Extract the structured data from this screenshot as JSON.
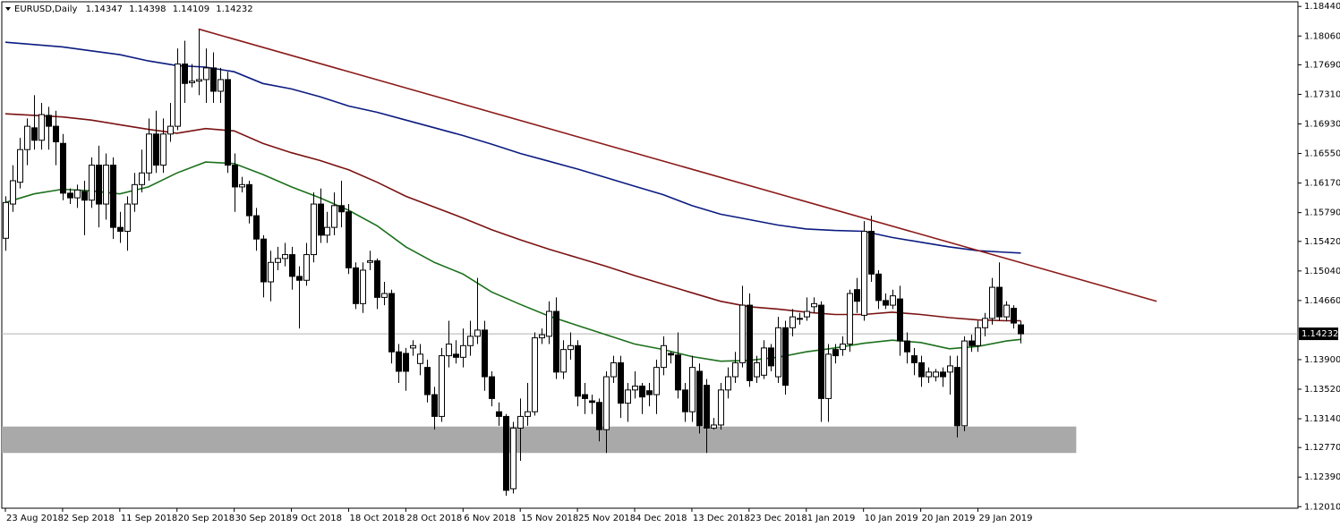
{
  "chart_data": {
    "type": "candlestick",
    "title": "EURUSD,Daily",
    "open": [
      1.1546,
      1.159,
      1.1618,
      1.166,
      1.1688,
      1.1672,
      1.1704,
      1.169,
      1.1668,
      1.1604,
      1.1598,
      1.1606,
      1.1595,
      1.164,
      1.159,
      1.164,
      1.156,
      1.1555,
      1.159,
      1.1615,
      1.163,
      1.168,
      1.164,
      1.168,
      1.169,
      1.177,
      1.1746,
      1.1748,
      1.175,
      1.1765,
      1.1735,
      1.175,
      1.164,
      1.1612,
      1.1615,
      1.1575,
      1.1545,
      1.149,
      1.1515,
      1.152,
      1.1525,
      1.1497,
      1.1492,
      1.1525,
      1.159,
      1.155,
      1.156,
      1.1588,
      1.158,
      1.1508,
      1.1462,
      1.1515,
      1.1517,
      1.147,
      1.1475,
      1.14,
      1.1398,
      1.1405,
      1.1385,
      1.138,
      1.1345,
      1.1317,
      1.1395,
      1.1397,
      1.1393,
      1.1408,
      1.142,
      1.1428,
      1.1368,
      1.1323,
      1.1317,
      1.1224,
      1.1302,
      1.1317,
      1.1323,
      1.1418,
      1.142,
      1.1452,
      1.1374,
      1.1403,
      1.1408,
      1.1345,
      1.1337,
      1.1335,
      1.13,
      1.1368,
      1.1386,
      1.1334,
      1.1351,
      1.1356,
      1.135,
      1.1345,
      1.138,
      1.1398,
      1.1396,
      1.1351,
      1.1323,
      1.1375,
      1.1357,
      1.1302,
      1.1306,
      1.1351,
      1.1368,
      1.1386,
      1.146,
      1.1368,
      1.137,
      1.1405,
      1.1368,
      1.1431,
      1.1431,
      1.1443,
      1.1445,
      1.1458,
      1.146,
      1.134,
      1.1403,
      1.1403,
      1.141,
      1.148,
      1.1447,
      1.1555,
      1.15,
      1.1466,
      1.146,
      1.1468,
      1.1414,
      1.1395,
      1.1386,
      1.1368,
      1.1368,
      1.1374,
      1.1374,
      1.138,
      1.1305,
      1.1414,
      1.1408,
      1.1431,
      1.1443,
      1.1483,
      1.1445,
      1.1456,
      1.14347
    ],
    "high": [
      1.16,
      1.164,
      1.1675,
      1.17,
      1.173,
      1.172,
      1.1715,
      1.171,
      1.168,
      1.161,
      1.1615,
      1.162,
      1.165,
      1.1665,
      1.1655,
      1.165,
      1.158,
      1.16,
      1.163,
      1.166,
      1.17,
      1.171,
      1.17,
      1.172,
      1.179,
      1.18,
      1.177,
      1.1815,
      1.179,
      1.1785,
      1.1765,
      1.176,
      1.1655,
      1.1625,
      1.162,
      1.1585,
      1.155,
      1.153,
      1.1535,
      1.154,
      1.1535,
      1.151,
      1.154,
      1.1605,
      1.161,
      1.158,
      1.1605,
      1.162,
      1.159,
      1.1515,
      1.1515,
      1.153,
      1.152,
      1.149,
      1.148,
      1.141,
      1.1405,
      1.1415,
      1.141,
      1.139,
      1.1355,
      1.1405,
      1.144,
      1.1415,
      1.143,
      1.144,
      1.1495,
      1.144,
      1.1375,
      1.1335,
      1.132,
      1.131,
      1.134,
      1.136,
      1.1425,
      1.143,
      1.1465,
      1.147,
      1.1415,
      1.1425,
      1.1415,
      1.136,
      1.1345,
      1.134,
      1.1375,
      1.1395,
      1.1395,
      1.136,
      1.1375,
      1.136,
      1.136,
      1.139,
      1.142,
      1.14,
      1.1425,
      1.136,
      1.1395,
      1.1385,
      1.1365,
      1.1315,
      1.136,
      1.138,
      1.14,
      1.1485,
      1.1475,
      1.1395,
      1.1415,
      1.141,
      1.1445,
      1.144,
      1.1455,
      1.145,
      1.147,
      1.147,
      1.1465,
      1.141,
      1.141,
      1.142,
      1.148,
      1.1495,
      1.1568,
      1.1575,
      1.1505,
      1.1475,
      1.148,
      1.1485,
      1.1425,
      1.1405,
      1.1395,
      1.138,
      1.1378,
      1.138,
      1.1395,
      1.1395,
      1.142,
      1.1422,
      1.144,
      1.145,
      1.1495,
      1.1515,
      1.1465,
      1.146,
      1.14398
    ],
    "low": [
      1.153,
      1.158,
      1.161,
      1.164,
      1.166,
      1.166,
      1.166,
      1.164,
      1.1595,
      1.159,
      1.1585,
      1.155,
      1.1585,
      1.156,
      1.157,
      1.1545,
      1.154,
      1.153,
      1.158,
      1.1605,
      1.162,
      1.163,
      1.163,
      1.167,
      1.1685,
      1.172,
      1.174,
      1.173,
      1.172,
      1.172,
      1.172,
      1.163,
      1.158,
      1.1605,
      1.1565,
      1.153,
      1.147,
      1.1465,
      1.1505,
      1.151,
      1.148,
      1.143,
      1.1485,
      1.1515,
      1.154,
      1.154,
      1.155,
      1.156,
      1.15,
      1.1455,
      1.145,
      1.1505,
      1.1455,
      1.146,
      1.1385,
      1.136,
      1.135,
      1.1395,
      1.137,
      1.1335,
      1.13,
      1.131,
      1.138,
      1.1385,
      1.138,
      1.1395,
      1.141,
      1.135,
      1.133,
      1.1305,
      1.1215,
      1.1218,
      1.126,
      1.1305,
      1.1318,
      1.141,
      1.141,
      1.1365,
      1.1365,
      1.139,
      1.133,
      1.132,
      1.132,
      1.1285,
      1.127,
      1.136,
      1.1315,
      1.131,
      1.134,
      1.132,
      1.133,
      1.132,
      1.137,
      1.1385,
      1.134,
      1.131,
      1.131,
      1.1295,
      1.127,
      1.13,
      1.13,
      1.134,
      1.136,
      1.138,
      1.1355,
      1.136,
      1.1365,
      1.1375,
      1.136,
      1.1345,
      1.142,
      1.1435,
      1.144,
      1.145,
      1.131,
      1.131,
      1.1385,
      1.1395,
      1.14,
      1.145,
      1.144,
      1.149,
      1.1455,
      1.1455,
      1.1455,
      1.1395,
      1.1385,
      1.137,
      1.1355,
      1.136,
      1.1362,
      1.1355,
      1.1345,
      1.129,
      1.1298,
      1.14,
      1.14,
      1.142,
      1.1435,
      1.144,
      1.144,
      1.143,
      1.14109
    ],
    "close": [
      1.1592,
      1.162,
      1.166,
      1.169,
      1.1672,
      1.1705,
      1.169,
      1.167,
      1.1604,
      1.1598,
      1.1608,
      1.1595,
      1.164,
      1.159,
      1.164,
      1.156,
      1.1555,
      1.159,
      1.1615,
      1.163,
      1.168,
      1.164,
      1.168,
      1.169,
      1.177,
      1.1745,
      1.1748,
      1.175,
      1.1765,
      1.1735,
      1.175,
      1.164,
      1.1612,
      1.1615,
      1.1575,
      1.1545,
      1.149,
      1.1515,
      1.152,
      1.1525,
      1.1497,
      1.1492,
      1.1525,
      1.159,
      1.155,
      1.156,
      1.1588,
      1.158,
      1.1508,
      1.1462,
      1.1505,
      1.1517,
      1.147,
      1.1475,
      1.14,
      1.1375,
      1.1375,
      1.1408,
      1.1397,
      1.1345,
      1.1317,
      1.1395,
      1.141,
      1.1393,
      1.1408,
      1.142,
      1.1428,
      1.1368,
      1.134,
      1.1317,
      1.1222,
      1.1302,
      1.1317,
      1.1323,
      1.1418,
      1.1422,
      1.1452,
      1.1374,
      1.1403,
      1.1408,
      1.1343,
      1.134,
      1.1335,
      1.13,
      1.1368,
      1.1386,
      1.1334,
      1.1351,
      1.1356,
      1.1342,
      1.1345,
      1.138,
      1.1408,
      1.1396,
      1.1351,
      1.1323,
      1.138,
      1.1305,
      1.1302,
      1.1306,
      1.1351,
      1.1368,
      1.1386,
      1.146,
      1.1363,
      1.1386,
      1.1405,
      1.1382,
      1.1431,
      1.1357,
      1.1445,
      1.1443,
      1.1452,
      1.1462,
      1.134,
      1.1397,
      1.1395,
      1.141,
      1.1475,
      1.1465,
      1.1555,
      1.15,
      1.1466,
      1.146,
      1.1472,
      1.1414,
      1.14,
      1.1386,
      1.1368,
      1.1374,
      1.1374,
      1.1368,
      1.1382,
      1.1305,
      1.1414,
      1.1408,
      1.1431,
      1.1443,
      1.1483,
      1.1445,
      1.146,
      1.1437,
      1.14232
    ],
    "line_x": [
      0,
      4,
      8,
      12,
      16,
      20,
      24,
      28,
      32,
      36,
      40,
      44,
      48,
      52,
      56,
      60,
      64,
      68,
      72,
      76,
      80,
      84,
      88,
      92,
      96,
      100,
      104,
      108,
      112,
      116,
      120,
      124,
      128,
      132,
      136,
      140,
      142
    ],
    "series": [
      {
        "color": "#0b1b80",
        "values": [
          1.1798,
          1.1795,
          1.1792,
          1.1787,
          1.1782,
          1.1774,
          1.1768,
          1.1766,
          1.176,
          1.1745,
          1.1738,
          1.1728,
          1.1716,
          1.1708,
          1.1698,
          1.1688,
          1.1678,
          1.1667,
          1.1655,
          1.1645,
          1.1635,
          1.1624,
          1.1613,
          1.1602,
          1.1588,
          1.1577,
          1.157,
          1.1563,
          1.1558,
          1.1556,
          1.1555,
          1.1547,
          1.1541,
          1.1535,
          1.153,
          1.1528,
          1.1527
        ]
      },
      {
        "color": "#7a1212",
        "values": [
          1.1706,
          1.1704,
          1.1702,
          1.1698,
          1.1692,
          1.1686,
          1.1681,
          1.1687,
          1.1684,
          1.1668,
          1.1656,
          1.1646,
          1.1634,
          1.1618,
          1.16,
          1.1586,
          1.1572,
          1.1557,
          1.1544,
          1.1532,
          1.1521,
          1.151,
          1.1498,
          1.1487,
          1.1476,
          1.1465,
          1.1458,
          1.1455,
          1.1451,
          1.1448,
          1.1448,
          1.1451,
          1.1448,
          1.1444,
          1.1441,
          1.144,
          1.144
        ]
      },
      {
        "color": "#1b701b",
        "values": [
          1.1592,
          1.1603,
          1.1609,
          1.1607,
          1.1603,
          1.1612,
          1.163,
          1.1644,
          1.1642,
          1.1628,
          1.1612,
          1.1598,
          1.1582,
          1.1562,
          1.1535,
          1.1515,
          1.15,
          1.1477,
          1.1461,
          1.1446,
          1.1434,
          1.1422,
          1.141,
          1.1403,
          1.1394,
          1.1388,
          1.1389,
          1.1393,
          1.14,
          1.1405,
          1.1411,
          1.1415,
          1.1412,
          1.1404,
          1.1407,
          1.1414,
          1.1416
        ]
      }
    ],
    "trendline": {
      "x": [
        27,
        161
      ],
      "y": [
        1.1815,
        1.1465
      ],
      "color": "#8b1a1a"
    },
    "zone": {
      "x": [
        0,
        149.75
      ],
      "y": [
        1.127,
        1.1304
      ],
      "color": "#a9a9a9"
    },
    "xlim": [
      -0.5,
      180.75
    ],
    "xticks": [
      {
        "value": 0,
        "label": "23 Aug 2018"
      },
      {
        "value": 8,
        "label": "2 Sep 2018"
      },
      {
        "value": 16,
        "label": "11 Sep 2018"
      },
      {
        "value": 24,
        "label": "20 Sep 2018"
      },
      {
        "value": 32,
        "label": "30 Sep 2018"
      },
      {
        "value": 40,
        "label": "9 Oct 2018"
      },
      {
        "value": 48,
        "label": "18 Oct 2018"
      },
      {
        "value": 56,
        "label": "28 Oct 2018"
      },
      {
        "value": 64,
        "label": "6 Nov 2018"
      },
      {
        "value": 72,
        "label": "15 Nov 2018"
      },
      {
        "value": 80,
        "label": "25 Nov 2018"
      },
      {
        "value": 88,
        "label": "4 Dec 2018"
      },
      {
        "value": 96,
        "label": "13 Dec 2018"
      },
      {
        "value": 104,
        "label": "23 Dec 2018"
      },
      {
        "value": 112,
        "label": "1 Jan 2019"
      },
      {
        "value": 120,
        "label": "10 Jan 2019"
      },
      {
        "value": 128,
        "label": "20 Jan 2019"
      },
      {
        "value": 136,
        "label": "29 Jan 2019"
      }
    ],
    "ylim": [
      1.1199,
      1.185
    ],
    "yticks": [
      {
        "value": 1.1844,
        "label": "1.18440"
      },
      {
        "value": 1.1806,
        "label": "1.18060"
      },
      {
        "value": 1.1769,
        "label": "1.17690"
      },
      {
        "value": 1.1731,
        "label": "1.17310"
      },
      {
        "value": 1.1693,
        "label": "1.16930"
      },
      {
        "value": 1.1655,
        "label": "1.16550"
      },
      {
        "value": 1.1617,
        "label": "1.16170"
      },
      {
        "value": 1.1579,
        "label": "1.15790"
      },
      {
        "value": 1.1542,
        "label": "1.15420"
      },
      {
        "value": 1.1504,
        "label": "1.15040"
      },
      {
        "value": 1.1466,
        "label": "1.14660"
      },
      {
        "value": 1.139,
        "label": "1.13900"
      },
      {
        "value": 1.1352,
        "label": "1.13520"
      },
      {
        "value": 1.1314,
        "label": "1.13140"
      },
      {
        "value": 1.1277,
        "label": "1.12770"
      },
      {
        "value": 1.1239,
        "label": "1.12390"
      },
      {
        "value": 1.1201,
        "label": "1.12010"
      }
    ]
  }
}
